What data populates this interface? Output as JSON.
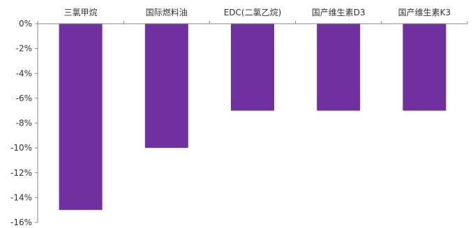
{
  "chart_data": {
    "type": "bar",
    "title": "",
    "xlabel": "",
    "ylabel": "",
    "categories": [
      "三氯甲烷",
      "国际燃料油",
      "EDC(二氯乙烷)",
      "国产维生素D3",
      "国产维生素K3"
    ],
    "values": [
      -15,
      -10,
      -7,
      -7,
      -7
    ],
    "ylim": [
      -16,
      0
    ],
    "yticks": [
      0,
      -2,
      -4,
      -6,
      -8,
      -10,
      -12,
      -14,
      -16
    ],
    "ytick_labels": [
      "0%",
      "-2%",
      "-4%",
      "-6%",
      "-8%",
      "-10%",
      "-12%",
      "-14%",
      "-16%"
    ],
    "category_label_position": "top",
    "grid": false,
    "legend": "none",
    "bar_color": "#7030A0",
    "axis_color": "#888888"
  }
}
